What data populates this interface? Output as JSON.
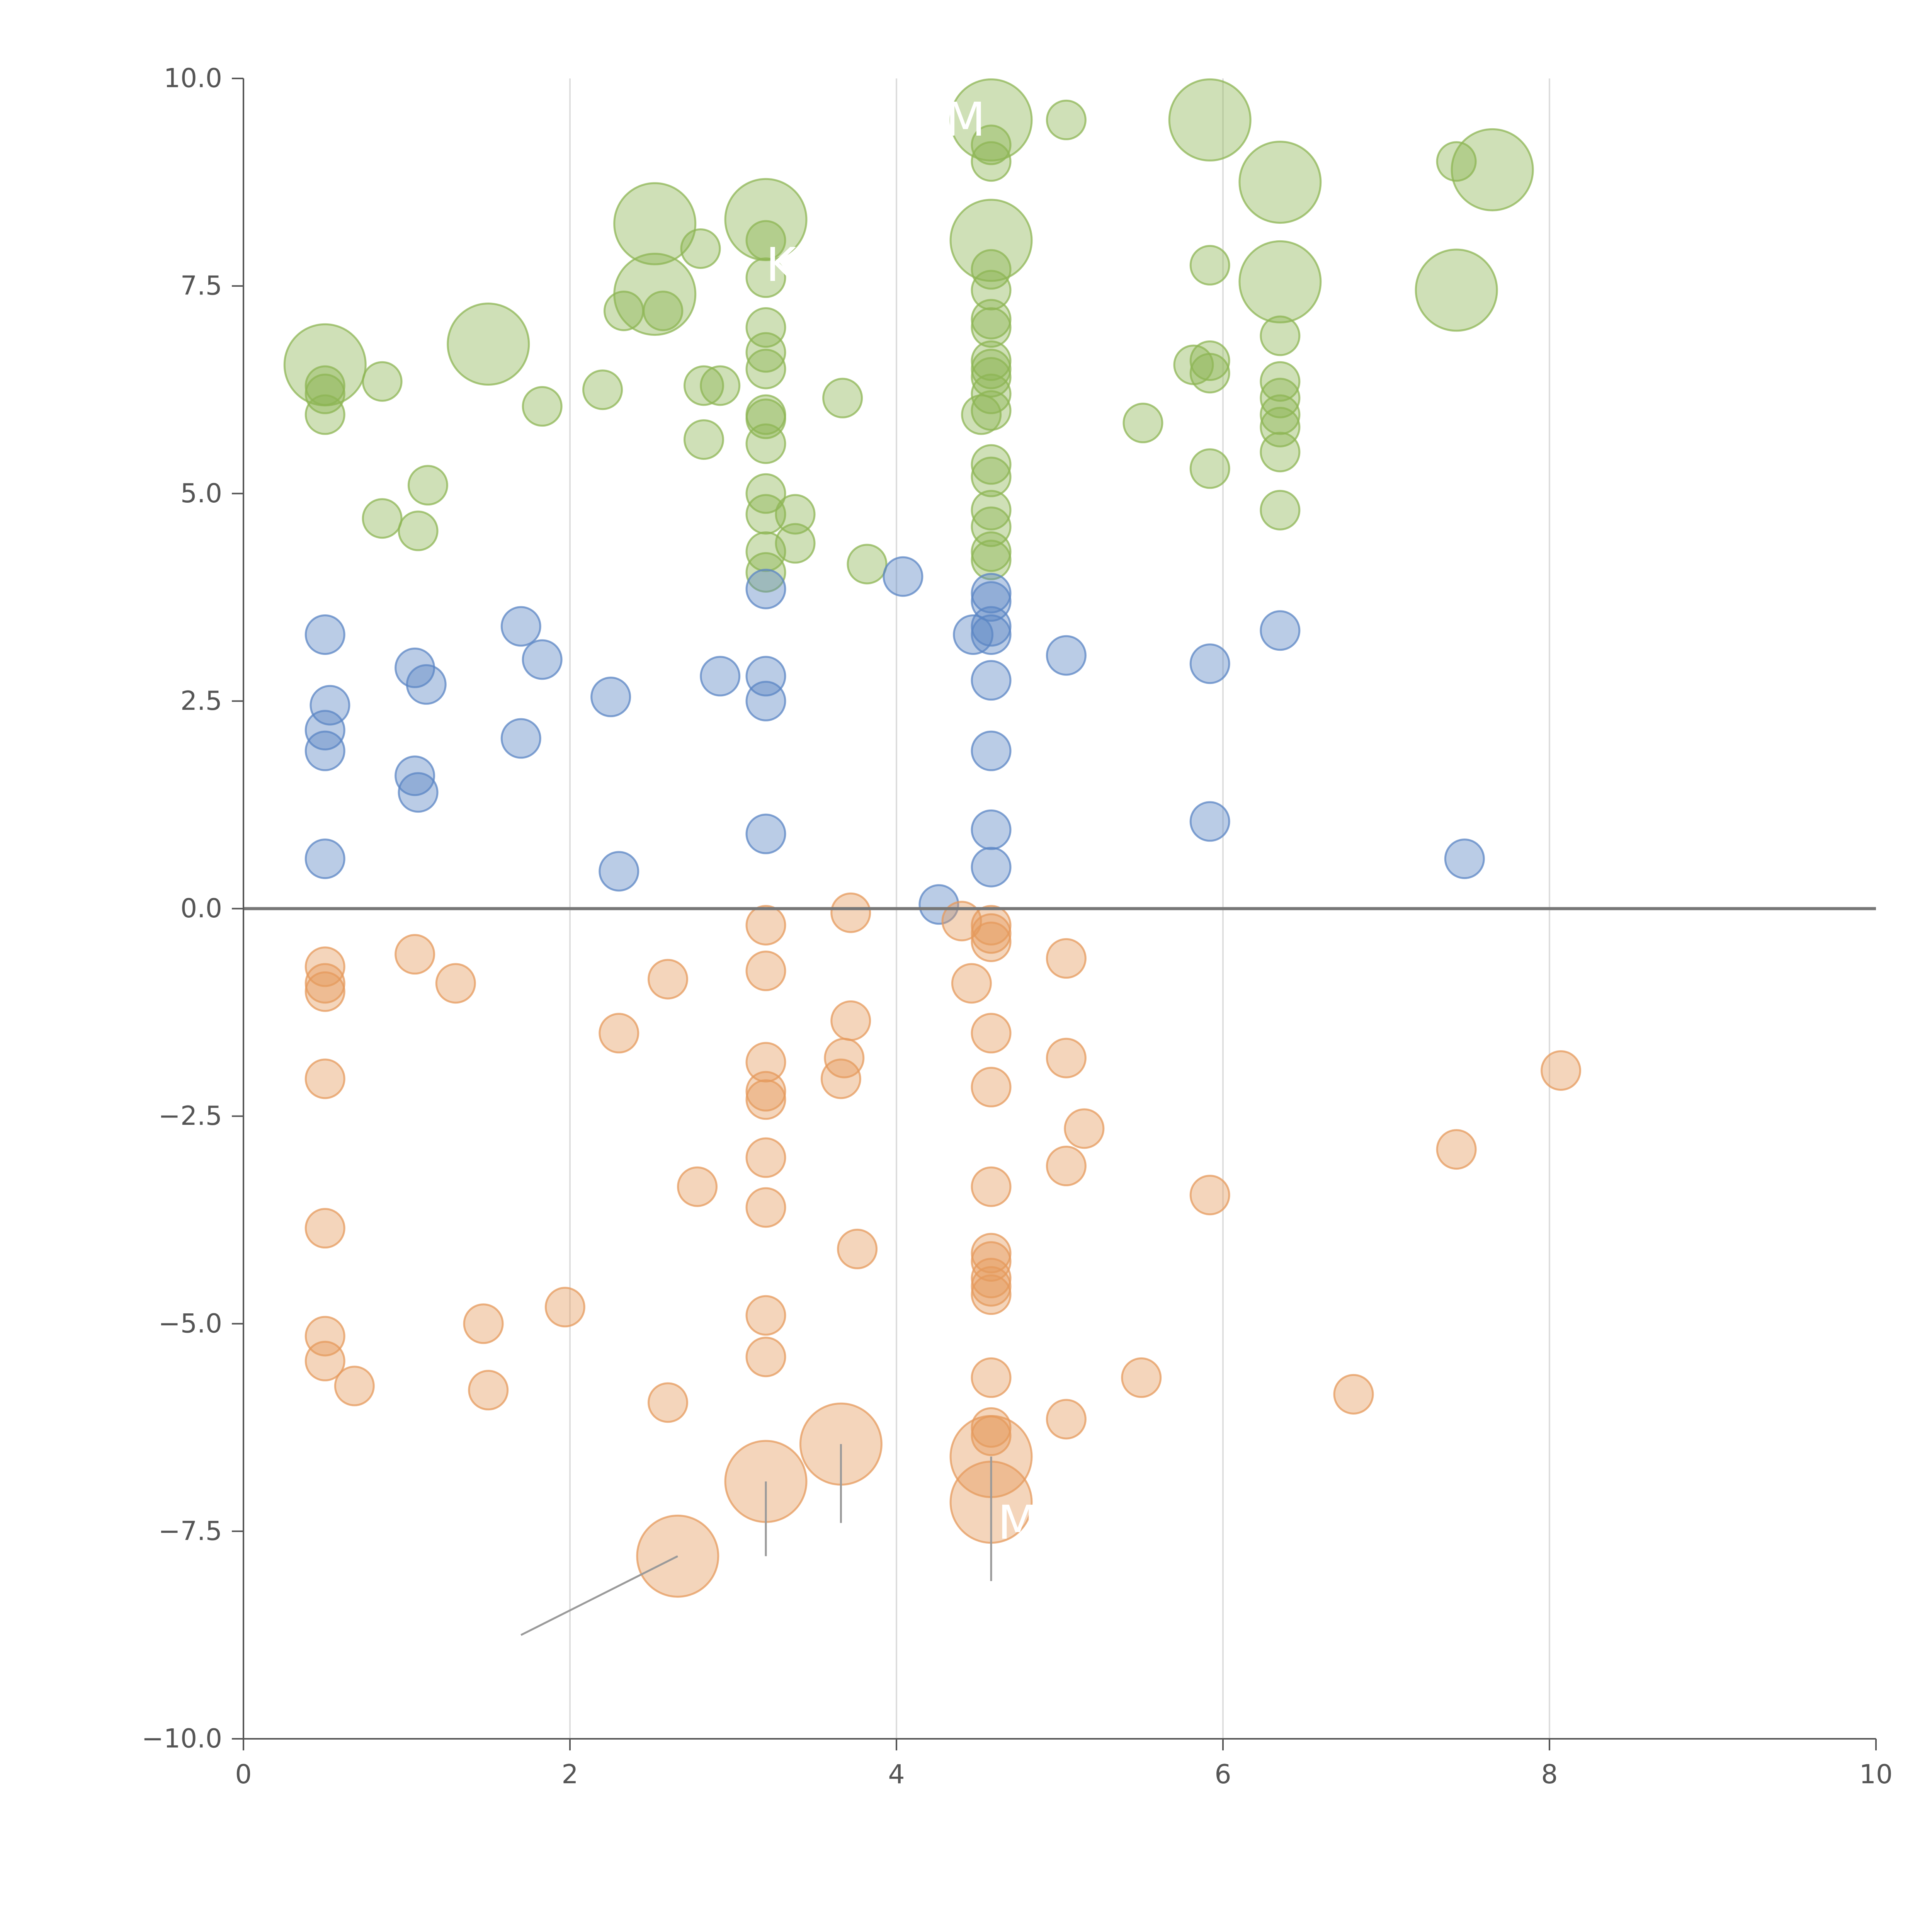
{
  "chart_data": {
    "type": "scatter",
    "title": "",
    "xlabel": "",
    "ylabel": "",
    "xlim": [
      0,
      10
    ],
    "ylim": [
      -10,
      10
    ],
    "xticks": [
      0,
      2,
      4,
      6,
      8,
      10
    ],
    "xtick_labels": [
      "0",
      "2",
      "4",
      "6",
      "8",
      "10"
    ],
    "yticks": [
      10,
      7.5,
      5,
      2.5,
      0,
      -2.5,
      -5,
      -7.5,
      -10
    ],
    "ytick_labels": [
      "10.0",
      "7.5",
      "5.0",
      "2.5",
      "0.0",
      "−2.5",
      "−5.0",
      "−7.5",
      "−10.0"
    ],
    "grid_x": [
      2,
      4,
      6,
      8
    ],
    "baseline_y": 0,
    "colors": {
      "green": "#8db654",
      "blue": "#5b86c4",
      "orange": "#e59a5c",
      "axis": "#555555",
      "grid": "#dddddd",
      "baseline": "#777777"
    },
    "series": [
      {
        "name": "green",
        "points": [
          [
            0.5,
            6.55,
            "l"
          ],
          [
            0.5,
            6.3,
            "s"
          ],
          [
            0.5,
            6.2,
            "s"
          ],
          [
            0.5,
            5.95,
            "s"
          ],
          [
            0.85,
            6.35,
            "s"
          ],
          [
            1.5,
            6.8,
            "l"
          ],
          [
            0.85,
            4.7,
            "s"
          ],
          [
            1.07,
            4.55,
            "s"
          ],
          [
            1.13,
            5.1,
            "s"
          ],
          [
            1.83,
            6.05,
            "s"
          ],
          [
            2.2,
            6.25,
            "s"
          ],
          [
            2.33,
            7.2,
            "s"
          ],
          [
            2.52,
            8.25,
            "l"
          ],
          [
            2.52,
            7.4,
            "l"
          ],
          [
            2.57,
            7.2,
            "s"
          ],
          [
            2.8,
            7.95,
            "s"
          ],
          [
            2.82,
            6.3,
            "s"
          ],
          [
            2.92,
            6.3,
            "s"
          ],
          [
            2.82,
            5.65,
            "s"
          ],
          [
            3.2,
            8.3,
            "l"
          ],
          [
            3.2,
            8.05,
            "s"
          ],
          [
            3.2,
            7.6,
            "s"
          ],
          [
            3.2,
            7.0,
            "s"
          ],
          [
            3.2,
            6.7,
            "s"
          ],
          [
            3.2,
            6.5,
            "s"
          ],
          [
            3.2,
            5.95,
            "s"
          ],
          [
            3.2,
            5.9,
            "s"
          ],
          [
            3.2,
            5.6,
            "s"
          ],
          [
            3.2,
            5.0,
            "s"
          ],
          [
            3.2,
            4.75,
            "s"
          ],
          [
            3.2,
            4.3,
            "s"
          ],
          [
            3.2,
            4.05,
            "s"
          ],
          [
            3.38,
            4.75,
            "s"
          ],
          [
            3.38,
            4.4,
            "s"
          ],
          [
            3.67,
            6.15,
            "s"
          ],
          [
            3.82,
            4.15,
            "s"
          ],
          [
            4.58,
            9.5,
            "l"
          ],
          [
            4.58,
            9.2,
            "s"
          ],
          [
            4.58,
            9.0,
            "s"
          ],
          [
            4.58,
            8.05,
            "l"
          ],
          [
            4.58,
            7.7,
            "s"
          ],
          [
            4.58,
            7.45,
            "s"
          ],
          [
            4.58,
            7.1,
            "s"
          ],
          [
            4.58,
            7.0,
            "s"
          ],
          [
            4.58,
            6.6,
            "s"
          ],
          [
            4.58,
            6.5,
            "s"
          ],
          [
            4.58,
            6.4,
            "s"
          ],
          [
            4.58,
            6.2,
            "s"
          ],
          [
            4.58,
            6.0,
            "s"
          ],
          [
            4.52,
            5.95,
            "s"
          ],
          [
            4.58,
            5.35,
            "s"
          ],
          [
            4.58,
            5.2,
            "s"
          ],
          [
            4.58,
            4.8,
            "s"
          ],
          [
            4.58,
            4.6,
            "s"
          ],
          [
            4.58,
            4.3,
            "s"
          ],
          [
            4.58,
            4.2,
            "s"
          ],
          [
            5.04,
            9.5,
            "s"
          ],
          [
            5.51,
            5.85,
            "s"
          ],
          [
            5.92,
            9.5,
            "l"
          ],
          [
            5.92,
            7.75,
            "s"
          ],
          [
            5.92,
            6.6,
            "s"
          ],
          [
            5.92,
            6.45,
            "s"
          ],
          [
            5.82,
            6.55,
            "s"
          ],
          [
            5.92,
            5.3,
            "s"
          ],
          [
            6.35,
            8.75,
            "l"
          ],
          [
            6.35,
            7.55,
            "l"
          ],
          [
            6.35,
            6.9,
            "s"
          ],
          [
            6.35,
            6.35,
            "s"
          ],
          [
            6.35,
            6.15,
            "s"
          ],
          [
            6.35,
            5.95,
            "s"
          ],
          [
            6.35,
            5.8,
            "s"
          ],
          [
            6.35,
            5.5,
            "s"
          ],
          [
            6.35,
            4.8,
            "s"
          ],
          [
            7.43,
            9.0,
            "s"
          ],
          [
            7.43,
            7.45,
            "l"
          ],
          [
            7.65,
            8.9,
            "l"
          ]
        ]
      },
      {
        "name": "blue",
        "points": [
          [
            0.5,
            3.3,
            "s"
          ],
          [
            0.53,
            2.45,
            "s"
          ],
          [
            0.5,
            2.15,
            "s"
          ],
          [
            0.5,
            1.9,
            "s"
          ],
          [
            0.5,
            0.6,
            "s"
          ],
          [
            1.05,
            2.9,
            "s"
          ],
          [
            1.12,
            2.7,
            "s"
          ],
          [
            1.05,
            1.6,
            "s"
          ],
          [
            1.07,
            1.4,
            "s"
          ],
          [
            1.7,
            3.4,
            "s"
          ],
          [
            1.83,
            3.0,
            "s"
          ],
          [
            1.7,
            2.05,
            "s"
          ],
          [
            2.25,
            2.55,
            "s"
          ],
          [
            2.3,
            0.45,
            "s"
          ],
          [
            2.92,
            2.8,
            "s"
          ],
          [
            3.2,
            3.85,
            "s"
          ],
          [
            3.2,
            2.8,
            "s"
          ],
          [
            3.2,
            2.5,
            "s"
          ],
          [
            3.2,
            0.9,
            "s"
          ],
          [
            4.04,
            4.0,
            "s"
          ],
          [
            4.26,
            0.05,
            "s"
          ],
          [
            4.47,
            3.3,
            "s"
          ],
          [
            4.58,
            3.8,
            "s"
          ],
          [
            4.58,
            3.7,
            "s"
          ],
          [
            4.58,
            3.4,
            "s"
          ],
          [
            4.58,
            3.3,
            "s"
          ],
          [
            4.58,
            2.75,
            "s"
          ],
          [
            4.58,
            1.9,
            "s"
          ],
          [
            4.58,
            0.95,
            "s"
          ],
          [
            4.58,
            0.5,
            "s"
          ],
          [
            5.04,
            3.05,
            "s"
          ],
          [
            5.92,
            2.95,
            "s"
          ],
          [
            5.92,
            1.05,
            "s"
          ],
          [
            6.35,
            3.35,
            "s"
          ],
          [
            7.48,
            0.6,
            "s"
          ]
        ]
      },
      {
        "name": "orange",
        "points": [
          [
            0.5,
            -0.7,
            "s"
          ],
          [
            0.5,
            -0.9,
            "s"
          ],
          [
            0.5,
            -1.0,
            "s"
          ],
          [
            0.5,
            -2.05,
            "s"
          ],
          [
            0.5,
            -3.85,
            "s"
          ],
          [
            0.5,
            -5.15,
            "s"
          ],
          [
            0.5,
            -5.45,
            "s"
          ],
          [
            0.68,
            -5.75,
            "s"
          ],
          [
            1.05,
            -0.55,
            "s"
          ],
          [
            1.3,
            -0.9,
            "s"
          ],
          [
            1.47,
            -5.0,
            "s"
          ],
          [
            1.5,
            -5.8,
            "s"
          ],
          [
            1.97,
            -4.8,
            "s"
          ],
          [
            2.3,
            -1.5,
            "s"
          ],
          [
            2.6,
            -0.85,
            "s"
          ],
          [
            2.6,
            -5.95,
            "s"
          ],
          [
            2.66,
            -7.8,
            "l"
          ],
          [
            2.78,
            -3.35,
            "s"
          ],
          [
            3.2,
            -0.2,
            "s"
          ],
          [
            3.2,
            -0.75,
            "s"
          ],
          [
            3.2,
            -1.85,
            "s"
          ],
          [
            3.2,
            -2.2,
            "s"
          ],
          [
            3.2,
            -2.3,
            "s"
          ],
          [
            3.2,
            -3.0,
            "s"
          ],
          [
            3.2,
            -3.6,
            "s"
          ],
          [
            3.2,
            -4.9,
            "s"
          ],
          [
            3.2,
            -5.4,
            "s"
          ],
          [
            3.2,
            -6.9,
            "l"
          ],
          [
            3.66,
            -6.45,
            "l"
          ],
          [
            3.66,
            -2.05,
            "s"
          ],
          [
            3.68,
            -1.8,
            "s"
          ],
          [
            3.72,
            -0.05,
            "s"
          ],
          [
            3.72,
            -1.35,
            "s"
          ],
          [
            3.76,
            -4.1,
            "s"
          ],
          [
            4.4,
            -0.15,
            "s"
          ],
          [
            4.46,
            -0.9,
            "s"
          ],
          [
            4.58,
            -0.2,
            "s"
          ],
          [
            4.58,
            -0.3,
            "s"
          ],
          [
            4.58,
            -0.4,
            "s"
          ],
          [
            4.58,
            -1.5,
            "s"
          ],
          [
            4.58,
            -2.15,
            "s"
          ],
          [
            4.58,
            -3.35,
            "s"
          ],
          [
            4.58,
            -4.15,
            "s"
          ],
          [
            4.58,
            -4.25,
            "s"
          ],
          [
            4.58,
            -4.45,
            "s"
          ],
          [
            4.58,
            -4.55,
            "s"
          ],
          [
            4.58,
            -4.65,
            "s"
          ],
          [
            4.58,
            -5.65,
            "s"
          ],
          [
            4.58,
            -6.25,
            "s"
          ],
          [
            4.58,
            -6.35,
            "s"
          ],
          [
            4.58,
            -6.6,
            "l"
          ],
          [
            4.58,
            -7.15,
            "l"
          ],
          [
            5.04,
            -0.6,
            "s"
          ],
          [
            5.04,
            -1.8,
            "s"
          ],
          [
            5.04,
            -3.1,
            "s"
          ],
          [
            5.04,
            -6.15,
            "s"
          ],
          [
            5.15,
            -2.65,
            "s"
          ],
          [
            5.5,
            -5.65,
            "s"
          ],
          [
            5.92,
            -3.45,
            "s"
          ],
          [
            6.8,
            -5.85,
            "s"
          ],
          [
            7.43,
            -2.9,
            "s"
          ],
          [
            8.07,
            -1.95,
            "s"
          ]
        ]
      }
    ],
    "annotations": [
      {
        "text": "M",
        "x": 4.3,
        "y": 9.5
      },
      {
        "text": "K",
        "x": 3.2,
        "y": 7.75
      },
      {
        "text": "M",
        "x": 4.62,
        "y": -7.4
      }
    ],
    "leader_lines": [
      [
        2.66,
        -7.8,
        1.7,
        -8.75
      ],
      [
        3.2,
        -6.9,
        3.2,
        -7.8
      ],
      [
        3.66,
        -6.45,
        3.66,
        -7.4
      ],
      [
        4.58,
        -6.6,
        4.58,
        -8.1
      ]
    ]
  }
}
